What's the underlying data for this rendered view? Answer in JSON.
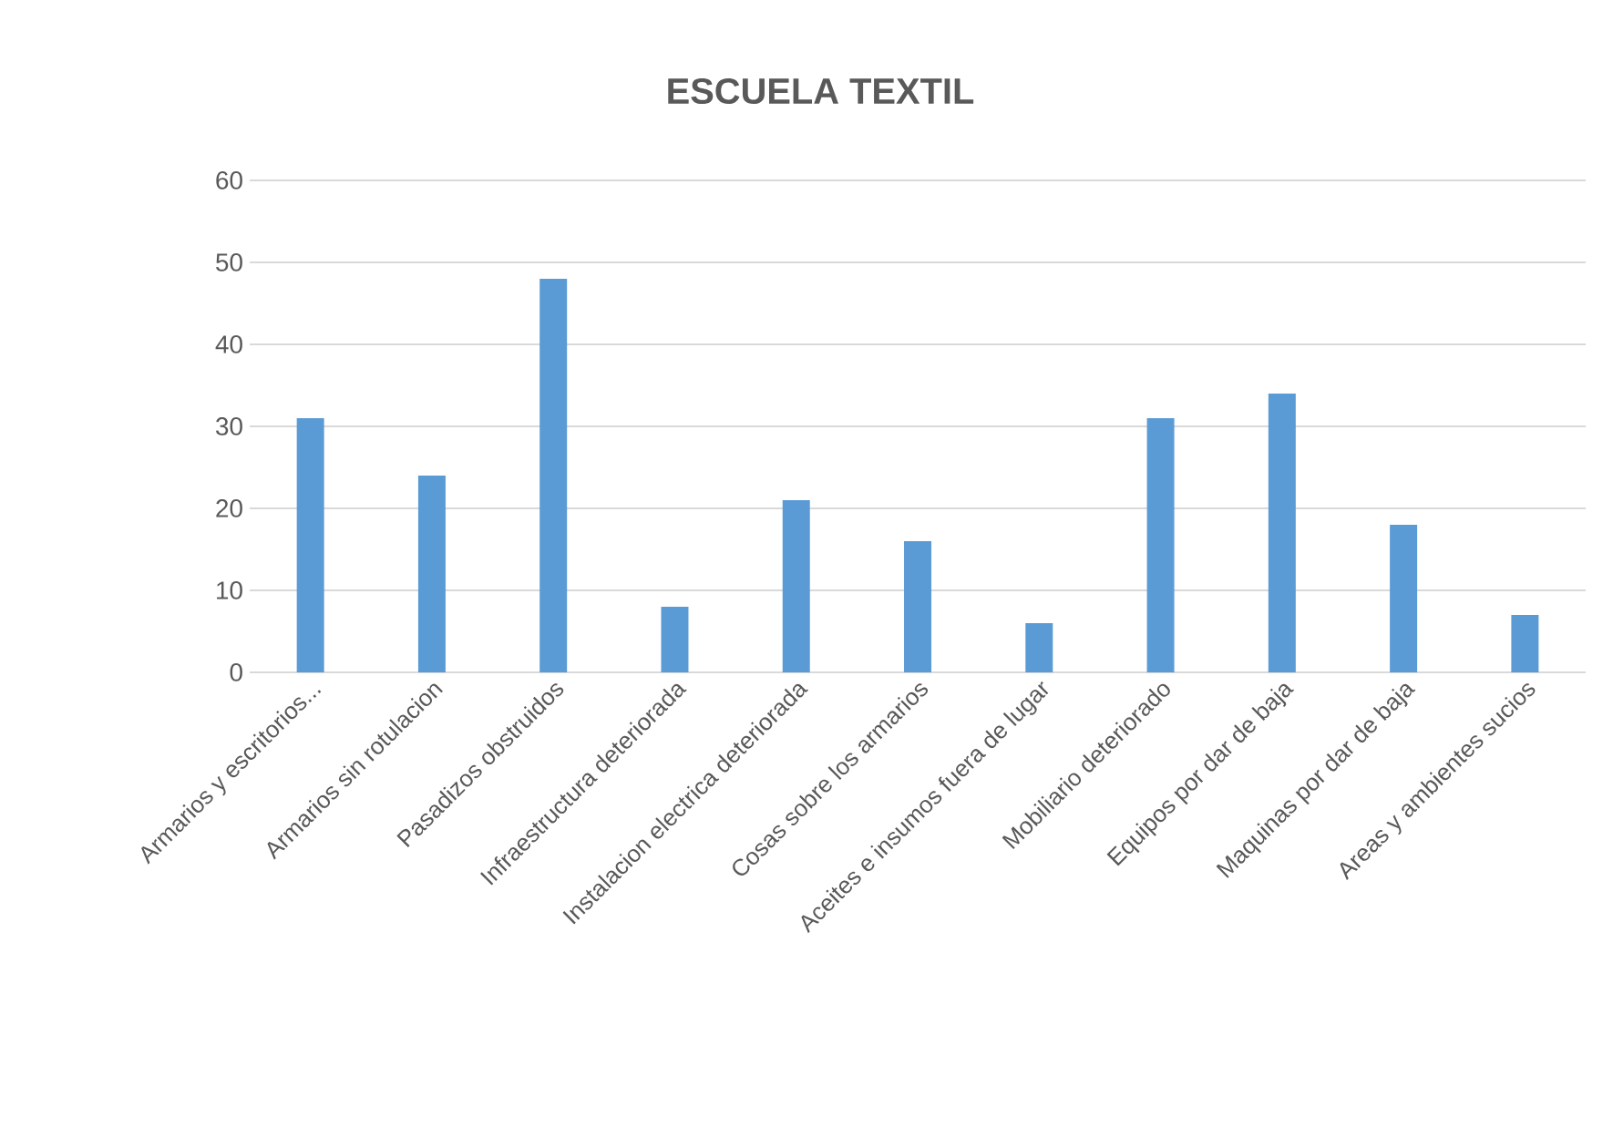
{
  "chart_data": {
    "type": "bar",
    "title": "ESCUELA TEXTIL",
    "categories": [
      "Armarios y escritorios...",
      "Armarios sin rotulacion",
      "Pasadizos obstruidos",
      "Infraestructura deteriorada",
      "Instalacion electrica deteriorada",
      "Cosas sobre los armarios",
      "Aceites e insumos fuera de lugar",
      "Mobiliario deteriorado",
      "Equipos por dar de baja",
      "Maquinas por dar de baja",
      "Areas y ambientes sucios"
    ],
    "values": [
      31,
      24,
      48,
      8,
      21,
      16,
      6,
      31,
      34,
      18,
      7
    ],
    "color": "#5b9bd5",
    "ylim": [
      0,
      60
    ],
    "yticks": [
      0,
      10,
      20,
      30,
      40,
      50,
      60
    ],
    "grid": "y"
  }
}
